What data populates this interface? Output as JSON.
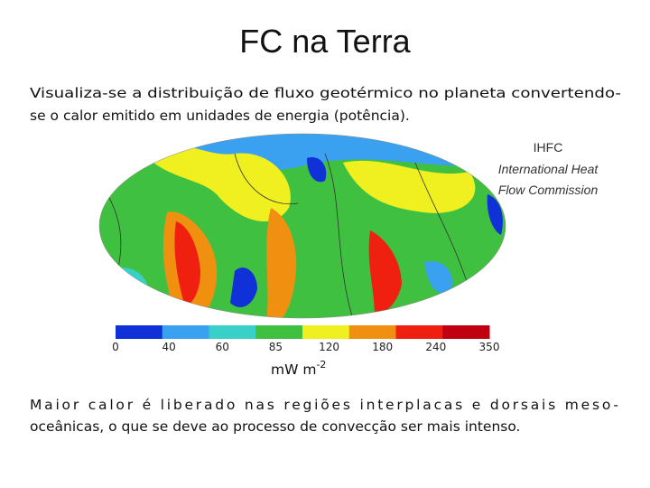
{
  "title": "FC na Terra",
  "intro": [
    "Visualiza-se a distribuição de fluxo geotérmico no planeta convertendo-",
    "se o calor emitido em unidades de energia (potência)."
  ],
  "credit": [
    "IHFC",
    "International Heat",
    "Flow Commission"
  ],
  "colorbar": {
    "ticks": [
      0,
      40,
      60,
      85,
      120,
      180,
      240,
      350
    ],
    "colors": [
      "#1030d8",
      "#3aa0f0",
      "#38d0c8",
      "#40c040",
      "#f0f020",
      "#f09010",
      "#f02010",
      "#c00010"
    ],
    "unit": "mW m",
    "unit_exponent": "-2"
  },
  "conclusion": [
    "Maior calor é liberado nas regiões interplacas e dorsais meso-",
    "oceânicas, o que se deve ao processo de convecção ser mais intenso."
  ]
}
